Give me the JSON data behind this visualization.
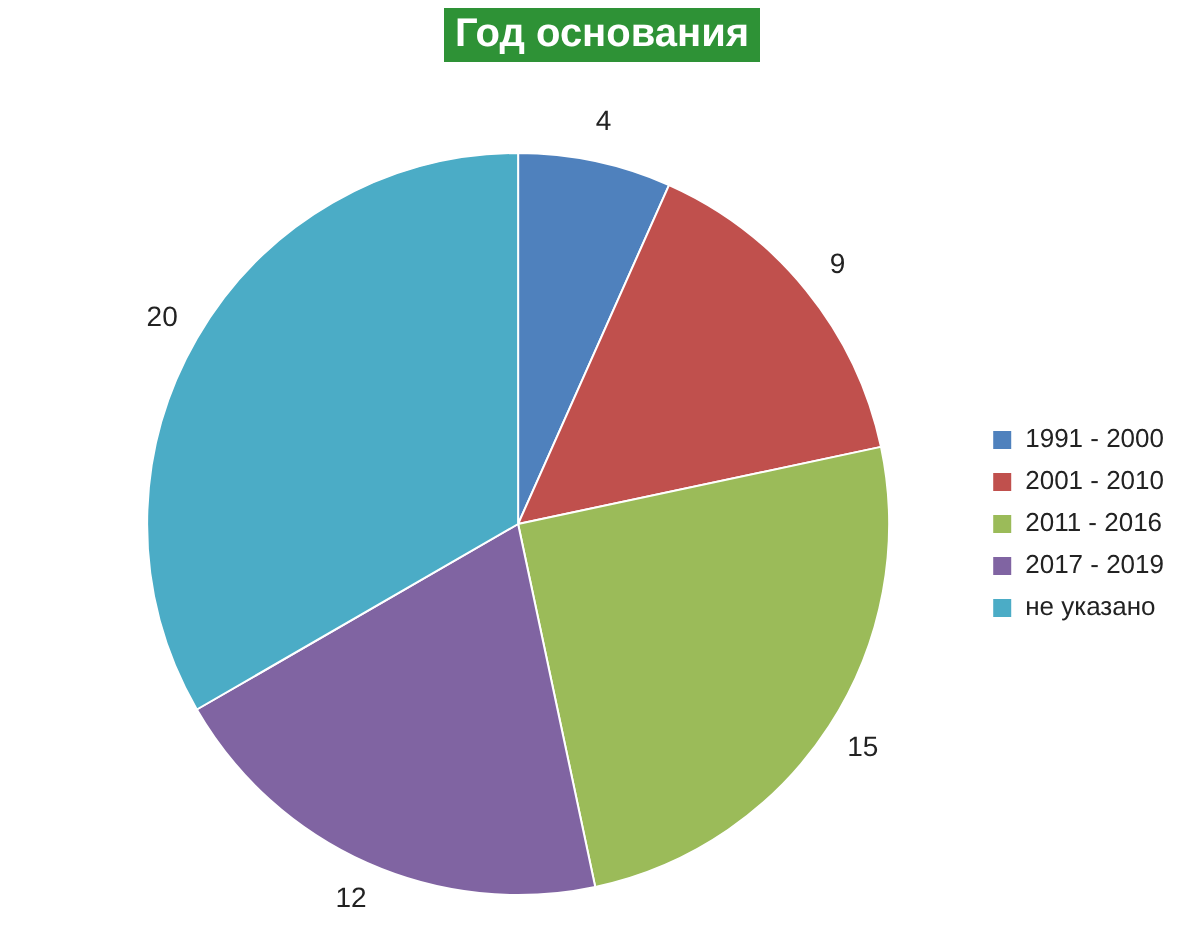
{
  "chart_data": {
    "type": "pie",
    "title": "Год основания",
    "categories": [
      "1991 - 2000",
      "2001 - 2010",
      "2011 - 2016",
      "2017 - 2019",
      "не указано"
    ],
    "values": [
      4,
      9,
      15,
      12,
      20
    ],
    "colors": [
      "#4f81bd",
      "#c0504d",
      "#9bbb59",
      "#8064a2",
      "#4bacc6"
    ],
    "data_labels": true,
    "legend": "right"
  }
}
